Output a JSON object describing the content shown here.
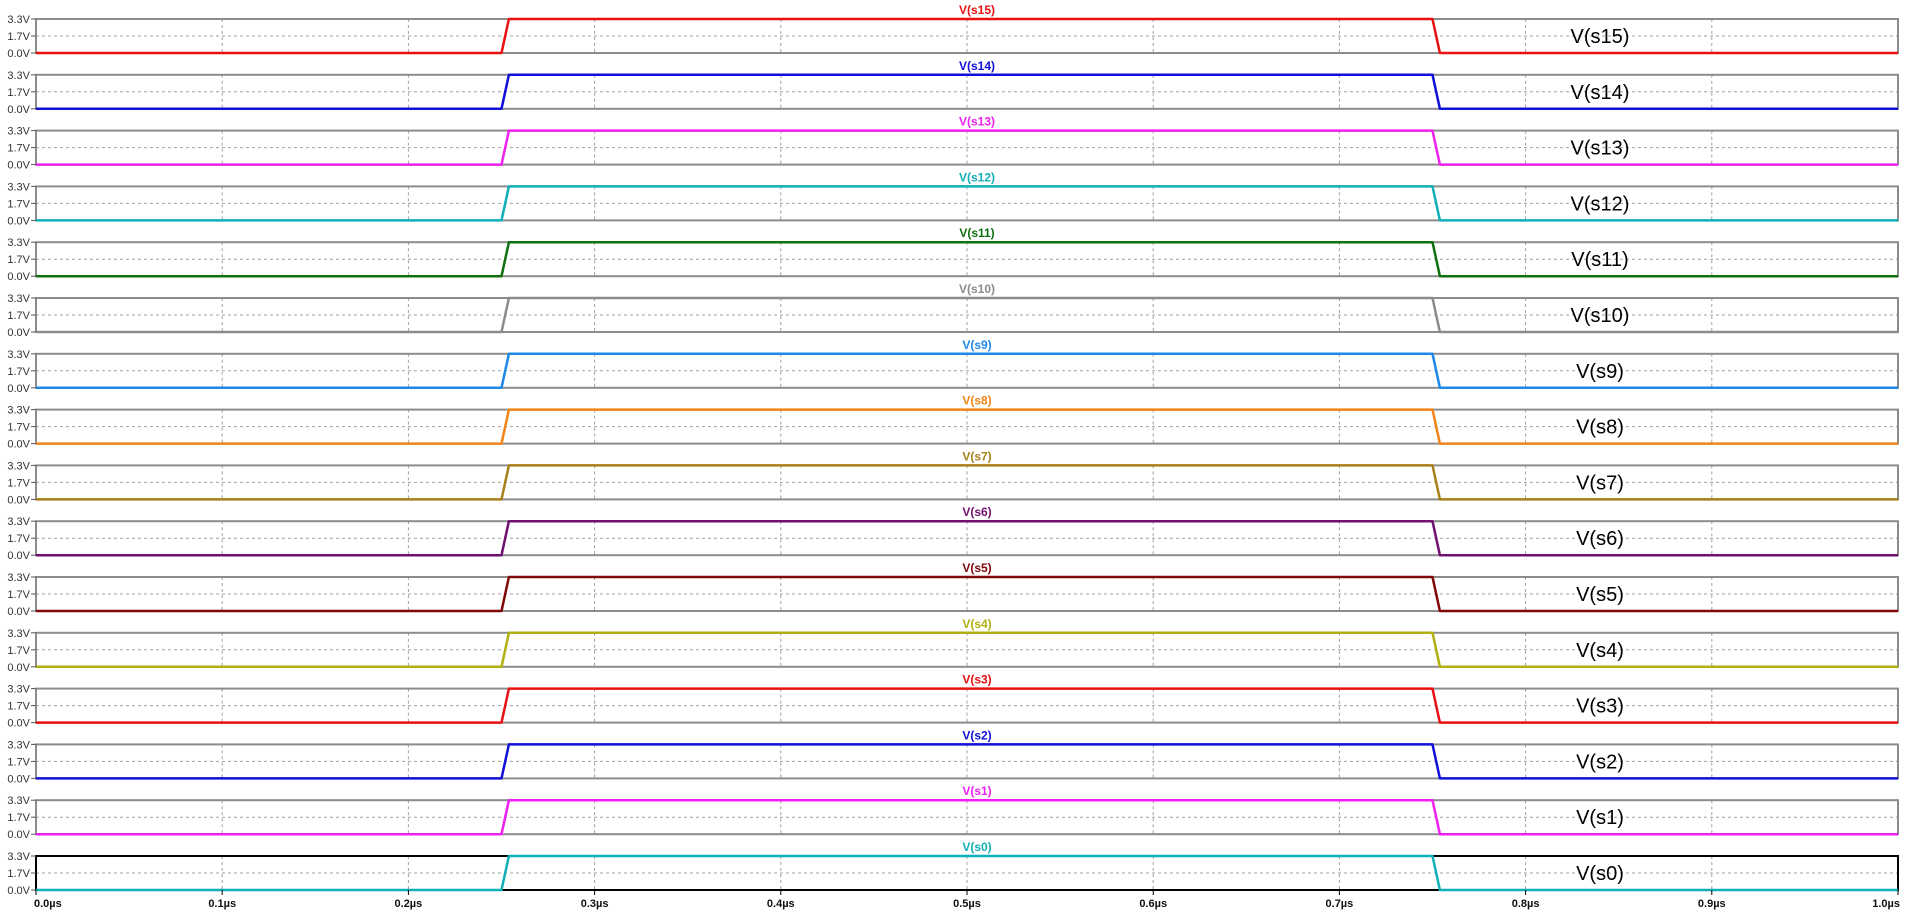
{
  "chart_data": {
    "type": "line",
    "x_unit": "µs",
    "x_ticks": [
      "0.0µs",
      "0.1µs",
      "0.2µs",
      "0.3µs",
      "0.4µs",
      "0.5µs",
      "0.6µs",
      "0.7µs",
      "0.8µs",
      "0.9µs",
      "1.0µs"
    ],
    "xlim": [
      0.0,
      1.0
    ],
    "y_ticks": [
      "3.3V",
      "1.7V",
      "0.0V"
    ],
    "ylim": [
      0.0,
      3.3
    ],
    "grid": true,
    "shared_x": [
      0.0,
      0.25,
      0.254,
      0.75,
      0.754,
      1.0
    ],
    "shared_y": [
      0.0,
      0.0,
      3.3,
      3.3,
      0.0,
      0.0
    ],
    "series": [
      {
        "name": "V(s15)",
        "annotation": "V(s15)",
        "color": "#e81010",
        "frame_color": "#8c8c8c"
      },
      {
        "name": "V(s14)",
        "annotation": "V(s14)",
        "color": "#1010d8",
        "frame_color": "#8c8c8c"
      },
      {
        "name": "V(s13)",
        "annotation": "V(s13)",
        "color": "#f020f0",
        "frame_color": "#8c8c8c"
      },
      {
        "name": "V(s12)",
        "annotation": "V(s12)",
        "color": "#10b0b8",
        "frame_color": "#8c8c8c"
      },
      {
        "name": "V(s11)",
        "annotation": "V(s11)",
        "color": "#107010",
        "frame_color": "#8c8c8c"
      },
      {
        "name": "V(s10)",
        "annotation": "V(s10)",
        "color": "#8c8c8c",
        "frame_color": "#8c8c8c"
      },
      {
        "name": "V(s9)",
        "annotation": "V(s9)",
        "color": "#1e88e8",
        "frame_color": "#8c8c8c"
      },
      {
        "name": "V(s8)",
        "annotation": "V(s8)",
        "color": "#f08418",
        "frame_color": "#8c8c8c"
      },
      {
        "name": "V(s7)",
        "annotation": "V(s7)",
        "color": "#a8801a",
        "frame_color": "#8c8c8c"
      },
      {
        "name": "V(s6)",
        "annotation": "V(s6)",
        "color": "#701070",
        "frame_color": "#8c8c8c"
      },
      {
        "name": "V(s5)",
        "annotation": "V(s5)",
        "color": "#800808",
        "frame_color": "#8c8c8c"
      },
      {
        "name": "V(s4)",
        "annotation": "V(s4)",
        "color": "#b0b010",
        "frame_color": "#8c8c8c"
      },
      {
        "name": "V(s3)",
        "annotation": "V(s3)",
        "color": "#e81010",
        "frame_color": "#8c8c8c"
      },
      {
        "name": "V(s2)",
        "annotation": "V(s2)",
        "color": "#1010d8",
        "frame_color": "#8c8c8c"
      },
      {
        "name": "V(s1)",
        "annotation": "V(s1)",
        "color": "#f020f0",
        "frame_color": "#8c8c8c"
      },
      {
        "name": "V(s0)",
        "annotation": "V(s0)",
        "color": "#10b0b8",
        "frame_color": "#000000"
      }
    ]
  }
}
